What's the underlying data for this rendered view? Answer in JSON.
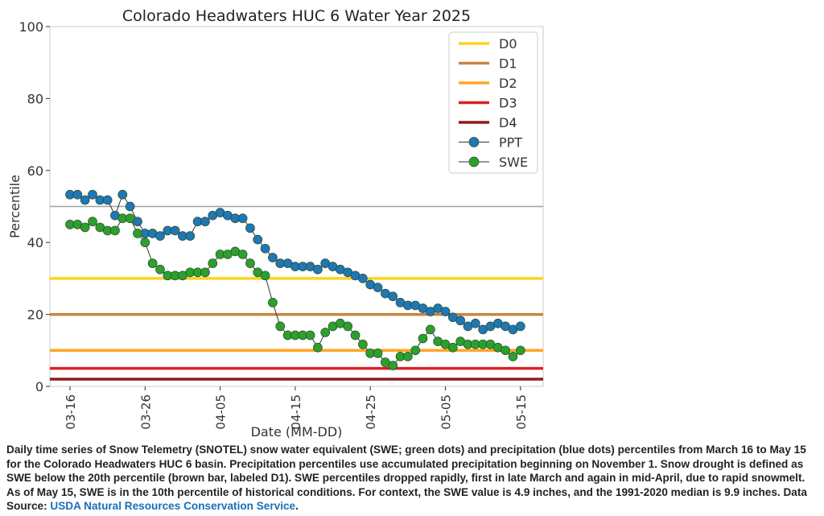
{
  "chart_data": {
    "type": "line",
    "title": "Colorado Headwaters HUC 6 Water Year 2025",
    "xlabel": "Date (MM-DD)",
    "ylabel": "Percentile",
    "ylim": [
      0,
      100
    ],
    "yticks": [
      0,
      20,
      40,
      60,
      80,
      100
    ],
    "xticks": [
      "03-16",
      "03-26",
      "04-05",
      "04-15",
      "04-25",
      "05-05",
      "05-15"
    ],
    "grid": false,
    "legend_position": "top-right",
    "reference_lines": [
      {
        "name": "median",
        "value": 50,
        "color": "#a0a0a0"
      },
      {
        "name": "D0",
        "value": 30,
        "color": "#ffd21f"
      },
      {
        "name": "D1",
        "value": 20,
        "color": "#c98540"
      },
      {
        "name": "D2",
        "value": 10,
        "color": "#ffa526"
      },
      {
        "name": "D3",
        "value": 5,
        "color": "#dc2020"
      },
      {
        "name": "D4",
        "value": 2,
        "color": "#8b1c1c"
      }
    ],
    "x_start": "03-16",
    "series": [
      {
        "name": "PPT",
        "color": "#1f77b4",
        "values": [
          53.3,
          53.3,
          51.8,
          53.3,
          51.8,
          51.8,
          47.5,
          53.3,
          50,
          45.8,
          42.5,
          42.5,
          41.8,
          43.3,
          43.3,
          41.8,
          41.8,
          45.8,
          45.8,
          47.5,
          48.3,
          47.5,
          46.7,
          46.7,
          44,
          40.8,
          38.3,
          35.8,
          34.2,
          34.2,
          33.3,
          33.3,
          33.3,
          32.5,
          34.2,
          33.3,
          32.5,
          31.7,
          30.8,
          30,
          28.3,
          27.5,
          25.8,
          25,
          23.3,
          22.5,
          22.5,
          21.7,
          20.8,
          21.7,
          20.8,
          19.2,
          18.3,
          16.7,
          17.5,
          15.8,
          16.7,
          17.5,
          16.7,
          15.8,
          16.7
        ]
      },
      {
        "name": "SWE",
        "color": "#2ca02c",
        "values": [
          45,
          45,
          44.2,
          45.8,
          44.2,
          43.3,
          43.3,
          46.7,
          46.7,
          42.5,
          40,
          34.2,
          32.5,
          30.8,
          30.8,
          30.8,
          31.7,
          31.7,
          31.7,
          34.2,
          36.7,
          36.7,
          37.5,
          36.7,
          34.2,
          31.7,
          30.8,
          23.3,
          16.7,
          14.2,
          14.2,
          14.2,
          14.2,
          10.8,
          15,
          16.7,
          17.5,
          16.7,
          14.2,
          11.7,
          9.2,
          9.2,
          6.7,
          5.8,
          8.3,
          8.3,
          10,
          13.3,
          15.8,
          12.5,
          11.7,
          10.8,
          12.5,
          11.7,
          11.7,
          11.7,
          11.7,
          10.8,
          10,
          8.3,
          10
        ]
      }
    ]
  },
  "caption": {
    "text": "Daily time series of Snow Telemetry (SNOTEL) snow water equivalent (SWE; green dots) and precipitation (blue dots) percentiles from March 16 to May 15 for the Colorado Headwaters HUC 6 basin. Precipitation percentiles use accumulated precipitation beginning on November 1. Snow drought is defined as SWE below the 20th percentile (brown bar, labeled D1). SWE percentiles dropped rapidly, first in late March and again in mid-April, due to rapid snowmelt. As of May 15, SWE is in the 10th percentile of historical conditions. For context, the SWE value is 4.9 inches, and the 1991-2020 median is 9.9 inches. Data Source: ",
    "link": "USDA Natural Resources Conservation Service",
    "end": "."
  }
}
